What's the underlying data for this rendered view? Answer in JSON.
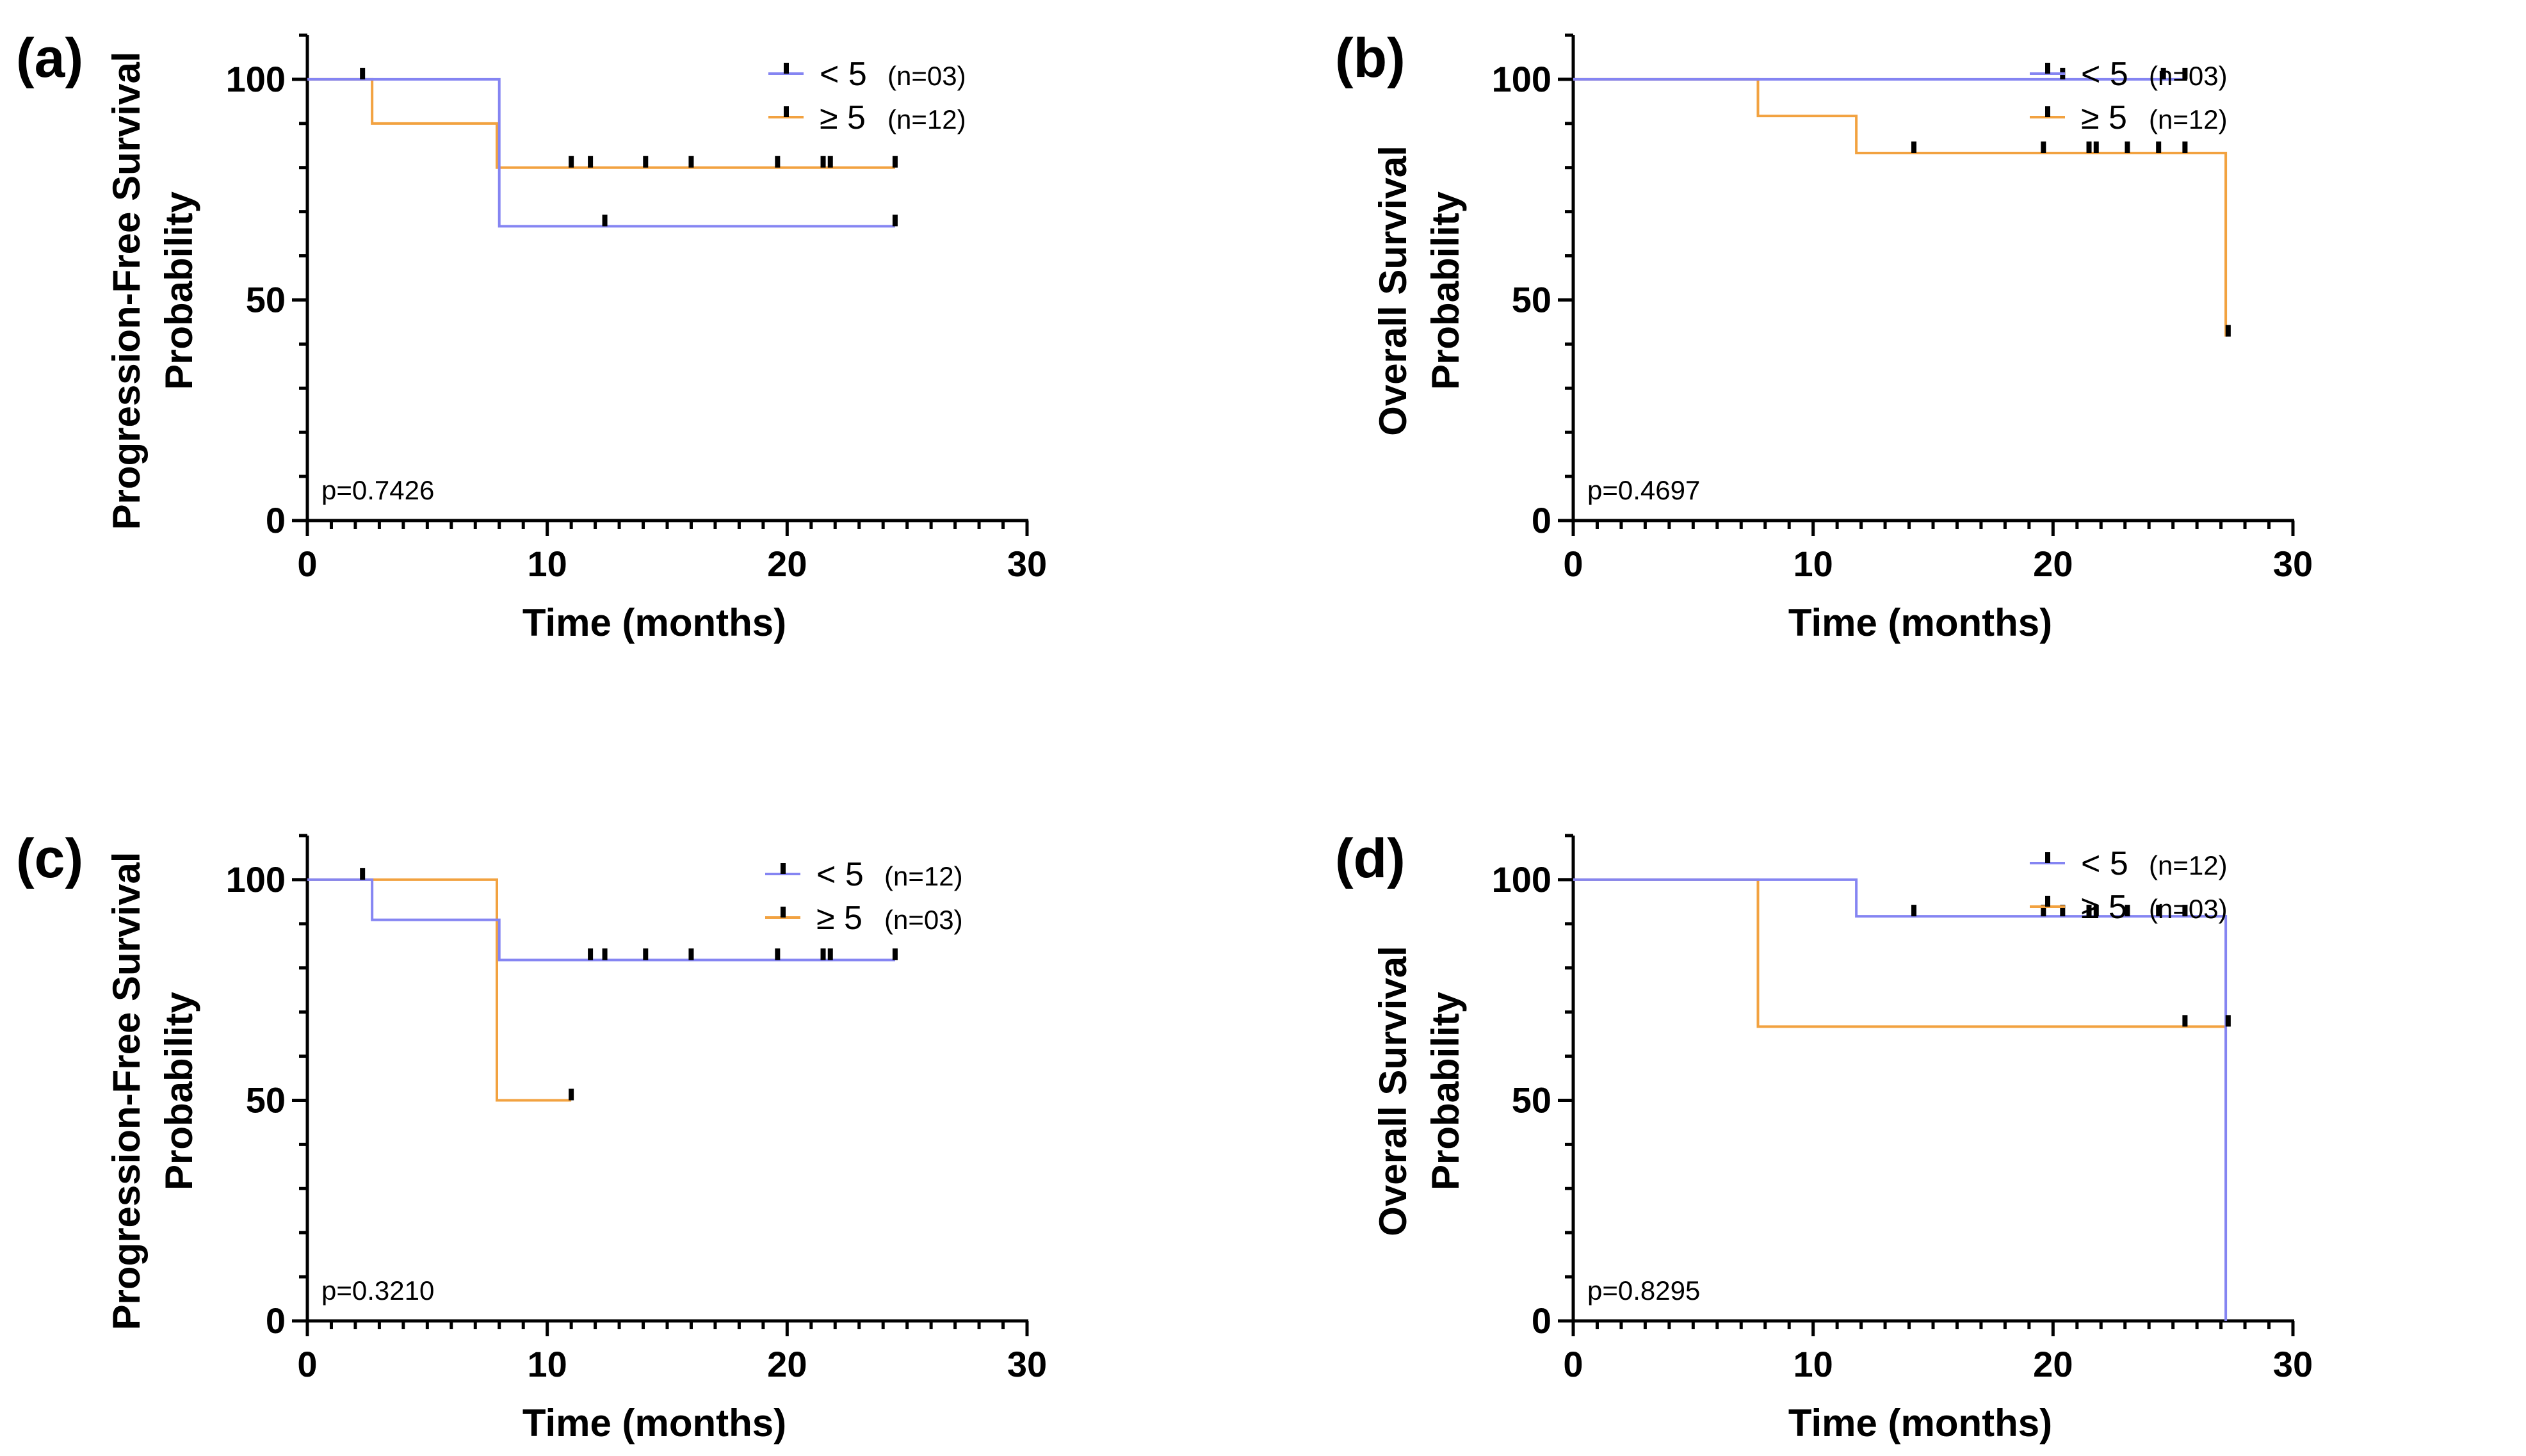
{
  "colors": {
    "blue": "#8585F2",
    "orange": "#F2A240",
    "axis": "#000000",
    "censor": "#000000"
  },
  "chart_data": [
    {
      "type": "line",
      "subtype": "kaplan-meier",
      "panel_label": "(a)",
      "ylabel_lines": [
        "Progression-Free Survival",
        "Probability"
      ],
      "xlabel": "Time (months)",
      "xlim": [
        0,
        30
      ],
      "ylim": [
        0,
        110
      ],
      "x_ticks": [
        0,
        10,
        20,
        30
      ],
      "y_ticks": [
        0,
        50,
        100
      ],
      "p_value": "p=0.7426",
      "series": [
        {
          "name": "< 5",
          "n_label": "(n=03)",
          "color": "blue",
          "steps": [
            [
              0,
              100
            ],
            [
              8,
              66.7
            ],
            [
              24.5,
              66.7
            ]
          ],
          "censored": [
            [
              2.3,
              100
            ],
            [
              12.4,
              66.7
            ],
            [
              24.5,
              66.7
            ]
          ]
        },
        {
          "name": "≥ 5",
          "n_label": "(n=12)",
          "color": "orange",
          "steps": [
            [
              0,
              100
            ],
            [
              2.7,
              90
            ],
            [
              7.9,
              80
            ],
            [
              24.5,
              80
            ]
          ],
          "censored": [
            [
              11,
              80
            ],
            [
              11.8,
              80
            ],
            [
              14.1,
              80
            ],
            [
              16,
              80
            ],
            [
              19.6,
              80
            ],
            [
              21.5,
              80
            ],
            [
              21.8,
              80
            ],
            [
              24.5,
              80
            ]
          ]
        }
      ]
    },
    {
      "type": "line",
      "subtype": "kaplan-meier",
      "panel_label": "(b)",
      "ylabel_lines": [
        "Overall Survival",
        "Probability"
      ],
      "xlabel": "Time (months)",
      "xlim": [
        0,
        30
      ],
      "ylim": [
        0,
        110
      ],
      "x_ticks": [
        0,
        10,
        20,
        30
      ],
      "y_ticks": [
        0,
        50,
        100
      ],
      "p_value": "p=0.4697",
      "series": [
        {
          "name": "< 5",
          "n_label": "(n=03)",
          "color": "blue",
          "steps": [
            [
              0,
              100
            ],
            [
              25.5,
              100
            ]
          ],
          "censored": [
            [
              20.4,
              100
            ],
            [
              24.6,
              100
            ],
            [
              25.5,
              100
            ]
          ]
        },
        {
          "name": "≥ 5",
          "n_label": "(n=12)",
          "color": "orange",
          "steps": [
            [
              0,
              100
            ],
            [
              7.7,
              91.7
            ],
            [
              11.8,
              83.3
            ],
            [
              27.2,
              41.7
            ]
          ],
          "censored": [
            [
              14.2,
              83.3
            ],
            [
              19.6,
              83.3
            ],
            [
              21.5,
              83.3
            ],
            [
              21.8,
              83.3
            ],
            [
              23.1,
              83.3
            ],
            [
              24.4,
              83.3
            ],
            [
              25.5,
              83.3
            ],
            [
              27.3,
              41.7
            ]
          ]
        }
      ]
    },
    {
      "type": "line",
      "subtype": "kaplan-meier",
      "panel_label": "(c)",
      "ylabel_lines": [
        "Progression-Free Survival",
        "Probability"
      ],
      "xlabel": "Time (months)",
      "xlim": [
        0,
        30
      ],
      "ylim": [
        0,
        110
      ],
      "x_ticks": [
        0,
        10,
        20,
        30
      ],
      "y_ticks": [
        0,
        50,
        100
      ],
      "p_value": "p=0.3210",
      "series": [
        {
          "name": "< 5",
          "n_label": "(n=12)",
          "color": "blue",
          "steps": [
            [
              0,
              100
            ],
            [
              2.7,
              90.9
            ],
            [
              8,
              81.8
            ],
            [
              24.5,
              81.8
            ]
          ],
          "censored": [
            [
              2.3,
              100
            ],
            [
              11.8,
              81.8
            ],
            [
              12.4,
              81.8
            ],
            [
              14.1,
              81.8
            ],
            [
              16,
              81.8
            ],
            [
              19.6,
              81.8
            ],
            [
              21.5,
              81.8
            ],
            [
              21.8,
              81.8
            ],
            [
              24.5,
              81.8
            ]
          ]
        },
        {
          "name": "≥ 5",
          "n_label": "(n=03)",
          "color": "orange",
          "steps": [
            [
              0,
              100
            ],
            [
              7.9,
              50
            ],
            [
              11,
              50
            ]
          ],
          "censored": [
            [
              11,
              50
            ]
          ]
        }
      ]
    },
    {
      "type": "line",
      "subtype": "kaplan-meier",
      "panel_label": "(d)",
      "ylabel_lines": [
        "Overall Survival",
        "Probability"
      ],
      "xlabel": "Time (months)",
      "xlim": [
        0,
        30
      ],
      "ylim": [
        0,
        110
      ],
      "x_ticks": [
        0,
        10,
        20,
        30
      ],
      "y_ticks": [
        0,
        50,
        100
      ],
      "p_value": "p=0.8295",
      "series": [
        {
          "name": "< 5",
          "n_label": "(n=12)",
          "color": "blue",
          "steps": [
            [
              0,
              100
            ],
            [
              11.8,
              91.7
            ],
            [
              27.2,
              0
            ]
          ],
          "censored": [
            [
              14.2,
              91.7
            ],
            [
              19.6,
              91.7
            ],
            [
              20.4,
              91.7
            ],
            [
              21.5,
              91.7
            ],
            [
              21.8,
              91.7
            ],
            [
              23.1,
              91.7
            ],
            [
              24.4,
              91.7
            ],
            [
              25.5,
              91.7
            ],
            [
              27.3,
              66.7
            ]
          ]
        },
        {
          "name": "≥ 5",
          "n_label": "(n=03)",
          "color": "orange",
          "steps": [
            [
              0,
              100
            ],
            [
              7.7,
              66.7
            ],
            [
              27.2,
              66.7
            ]
          ],
          "censored": [
            [
              25.5,
              66.7
            ]
          ]
        }
      ]
    }
  ]
}
